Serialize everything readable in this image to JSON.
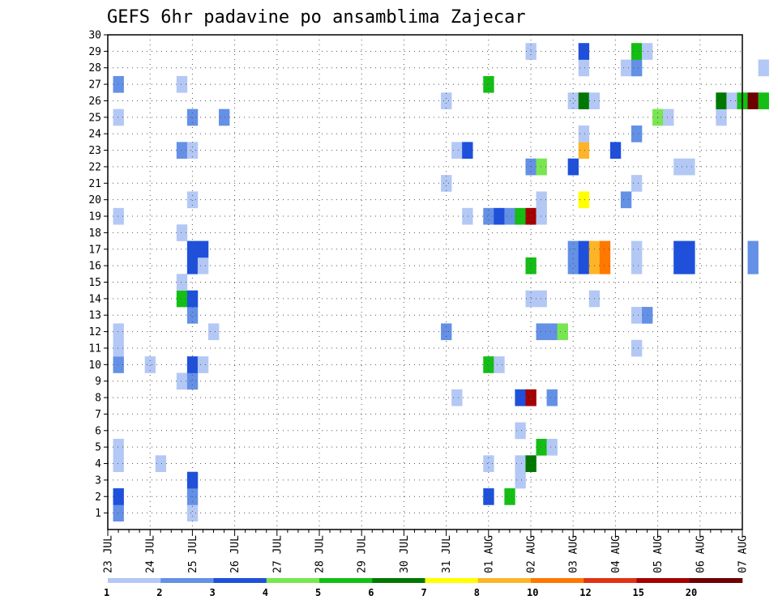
{
  "chart_data": {
    "type": "heatmap",
    "title": "GEFS 6hr padavine po ansamblima Zajecar",
    "xlabel": "",
    "ylabel": "",
    "x_range": [
      "23 JUL 00Z",
      "07 AUG 00Z"
    ],
    "x_step_hours": 6,
    "y_range": [
      1,
      30
    ],
    "x_tick_labels": [
      "23 JUL",
      "24 JUL",
      "25 JUL",
      "26 JUL",
      "27 JUL",
      "28 JUL",
      "29 JUL",
      "30 JUL",
      "31 JUL",
      "01 AUG",
      "02 AUG",
      "03 AUG",
      "04 AUG",
      "05 AUG",
      "06 AUG",
      "07 AUG"
    ],
    "y_tick_labels": [
      "1",
      "2",
      "3",
      "4",
      "5",
      "6",
      "7",
      "8",
      "9",
      "10",
      "11",
      "12",
      "13",
      "14",
      "15",
      "16",
      "17",
      "18",
      "19",
      "20",
      "21",
      "22",
      "23",
      "24",
      "25",
      "26",
      "27",
      "28",
      "29",
      "30"
    ],
    "grid": true,
    "legend": "bottom",
    "colorbar": {
      "bounds": [
        1,
        2,
        3,
        4,
        5,
        6,
        7,
        8,
        10,
        12,
        15,
        20
      ],
      "labels": [
        "1",
        "2",
        "3",
        "4",
        "5",
        "6",
        "7",
        "8",
        "10",
        "12",
        "15",
        "20"
      ],
      "colors": [
        "#b4c8f5",
        "#6490e6",
        "#1e50dc",
        "#78e650",
        "#14be14",
        "#007800",
        "#ffff00",
        "#ffb428",
        "#ff7800",
        "#e13214",
        "#a50000",
        "#6e0000"
      ]
    },
    "cells": [
      [
        1,
        1,
        2
      ],
      [
        1,
        2,
        3
      ],
      [
        1,
        4,
        1
      ],
      [
        1,
        5,
        1
      ],
      [
        1,
        10,
        2
      ],
      [
        1,
        11,
        1
      ],
      [
        1,
        12,
        1
      ],
      [
        1,
        19,
        1
      ],
      [
        1,
        25,
        1
      ],
      [
        1,
        27,
        2
      ],
      [
        4,
        10,
        1
      ],
      [
        5,
        4,
        1
      ],
      [
        7,
        9,
        1
      ],
      [
        7,
        14,
        5
      ],
      [
        7,
        15,
        1
      ],
      [
        7,
        18,
        1
      ],
      [
        7,
        23,
        2
      ],
      [
        7,
        27,
        1
      ],
      [
        8,
        1,
        1
      ],
      [
        8,
        2,
        2
      ],
      [
        8,
        3,
        3
      ],
      [
        8,
        9,
        2
      ],
      [
        8,
        10,
        3
      ],
      [
        8,
        13,
        2
      ],
      [
        8,
        14,
        3
      ],
      [
        8,
        16,
        3
      ],
      [
        8,
        17,
        3
      ],
      [
        8,
        20,
        1
      ],
      [
        8,
        23,
        1
      ],
      [
        8,
        25,
        2
      ],
      [
        9,
        10,
        1
      ],
      [
        9,
        16,
        1
      ],
      [
        9,
        17,
        3
      ],
      [
        10,
        12,
        1
      ],
      [
        11,
        25,
        2
      ],
      [
        32,
        12,
        2
      ],
      [
        32,
        21,
        1
      ],
      [
        32,
        26,
        1
      ],
      [
        33,
        8,
        1
      ],
      [
        33,
        23,
        1
      ],
      [
        34,
        19,
        1
      ],
      [
        34,
        23,
        3
      ],
      [
        36,
        2,
        3
      ],
      [
        36,
        4,
        1
      ],
      [
        36,
        10,
        5
      ],
      [
        36,
        19,
        2
      ],
      [
        36,
        27,
        5
      ],
      [
        37,
        10,
        1
      ],
      [
        37,
        19,
        3
      ],
      [
        38,
        2,
        5
      ],
      [
        38,
        19,
        2
      ],
      [
        39,
        3,
        1
      ],
      [
        39,
        4,
        1
      ],
      [
        39,
        6,
        1
      ],
      [
        39,
        8,
        3
      ],
      [
        39,
        19,
        5
      ],
      [
        40,
        4,
        6
      ],
      [
        40,
        8,
        11
      ],
      [
        40,
        14,
        1
      ],
      [
        40,
        16,
        5
      ],
      [
        40,
        19,
        11
      ],
      [
        40,
        22,
        2
      ],
      [
        40,
        29,
        1
      ],
      [
        41,
        5,
        5
      ],
      [
        41,
        12,
        2
      ],
      [
        41,
        14,
        1
      ],
      [
        41,
        19,
        1
      ],
      [
        41,
        20,
        1
      ],
      [
        41,
        22,
        4
      ],
      [
        42,
        5,
        1
      ],
      [
        42,
        8,
        2
      ],
      [
        42,
        12,
        2
      ],
      [
        43,
        12,
        4
      ],
      [
        44,
        16,
        2
      ],
      [
        44,
        17,
        2
      ],
      [
        44,
        22,
        3
      ],
      [
        44,
        26,
        1
      ],
      [
        45,
        16,
        3
      ],
      [
        45,
        17,
        3
      ],
      [
        45,
        23,
        8
      ],
      [
        45,
        24,
        1
      ],
      [
        45,
        26,
        6
      ],
      [
        45,
        28,
        1
      ],
      [
        45,
        29,
        3
      ],
      [
        45,
        20,
        7
      ],
      [
        46,
        14,
        1
      ],
      [
        46,
        16,
        8
      ],
      [
        46,
        17,
        8
      ],
      [
        46,
        26,
        1
      ],
      [
        47,
        16,
        9
      ],
      [
        47,
        17,
        9
      ],
      [
        48,
        23,
        3
      ],
      [
        49,
        20,
        2
      ],
      [
        49,
        28,
        1
      ],
      [
        50,
        13,
        1
      ],
      [
        50,
        11,
        1
      ],
      [
        50,
        16,
        1
      ],
      [
        50,
        17,
        1
      ],
      [
        50,
        21,
        1
      ],
      [
        50,
        24,
        2
      ],
      [
        50,
        28,
        2
      ],
      [
        50,
        29,
        5
      ],
      [
        51,
        13,
        2
      ],
      [
        51,
        29,
        1
      ],
      [
        52,
        25,
        4
      ],
      [
        53,
        25,
        1
      ],
      [
        54,
        16,
        3
      ],
      [
        54,
        17,
        3
      ],
      [
        54,
        22,
        1
      ],
      [
        55,
        16,
        3
      ],
      [
        55,
        17,
        3
      ],
      [
        55,
        22,
        1
      ],
      [
        58,
        25,
        1
      ],
      [
        58,
        26,
        6
      ],
      [
        59,
        26,
        1
      ],
      [
        60,
        26,
        5
      ],
      [
        61,
        16,
        2
      ],
      [
        61,
        17,
        2
      ],
      [
        61,
        26,
        12
      ],
      [
        62,
        26,
        5
      ],
      [
        62,
        28,
        1
      ]
    ]
  }
}
